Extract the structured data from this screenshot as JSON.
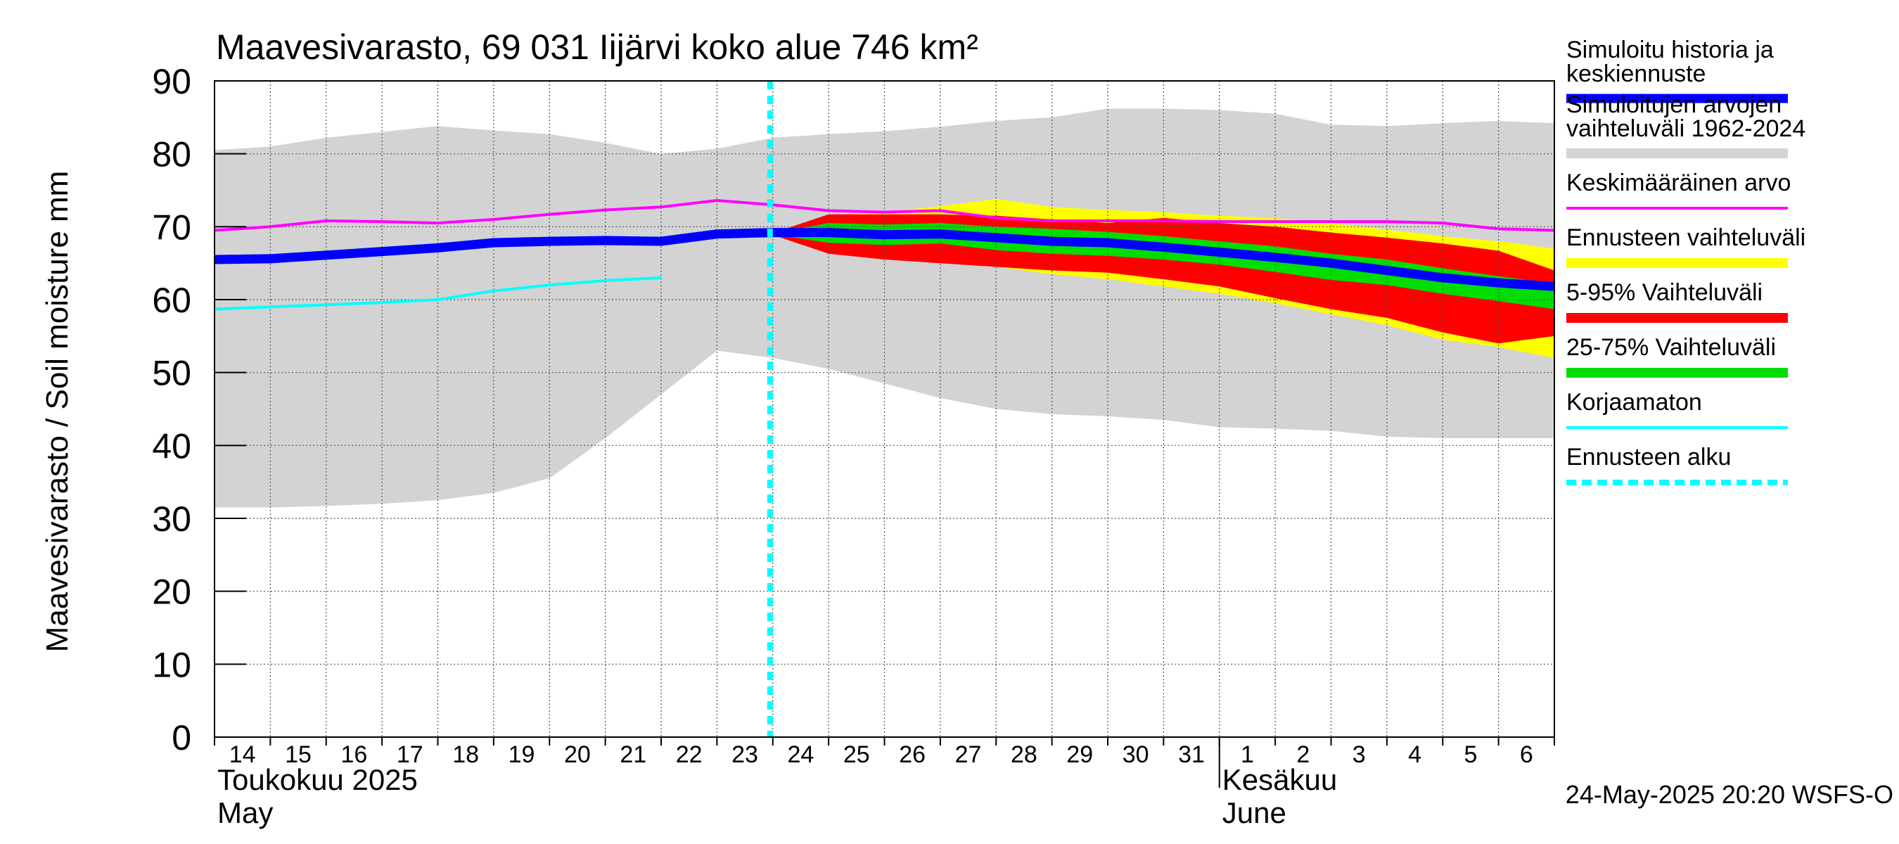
{
  "chart_data": {
    "type": "area",
    "title": "Maavesivarasto, 69 031 Iijärvi koko alue 746 km²",
    "ylabel": "Maavesivarasto / Soil moisture   mm",
    "ylim": [
      0,
      90
    ],
    "yticks": [
      0,
      10,
      20,
      30,
      40,
      50,
      60,
      70,
      80,
      90
    ],
    "x_start_day": 14,
    "x_end_day": 38,
    "x_ticks": [
      "14",
      "15",
      "16",
      "17",
      "18",
      "19",
      "20",
      "21",
      "22",
      "23",
      "24",
      "25",
      "26",
      "27",
      "28",
      "29",
      "30",
      "31",
      "1",
      "2",
      "3",
      "4",
      "5",
      "6"
    ],
    "month_labels": [
      {
        "fi": "Toukokuu  2025",
        "en": "May",
        "day": 14
      },
      {
        "fi": "Kesäkuu",
        "en": "June",
        "day": 32
      }
    ],
    "month_separator_day": 32,
    "forecast_start_day": 23.95,
    "series": {
      "sim_range": {
        "name": "Simuloitujen arvojen vaihteluväli 1962-2024",
        "color": "#d3d3d3",
        "x": [
          14,
          15,
          16,
          17,
          18,
          19,
          20,
          21,
          22,
          23,
          24,
          25,
          26,
          27,
          28,
          29,
          30,
          31,
          32,
          33,
          34,
          35,
          36,
          37,
          38
        ],
        "upper": [
          80.5,
          81,
          82.2,
          83,
          83.8,
          83.2,
          82.7,
          81.5,
          80,
          80.7,
          82.2,
          82.7,
          83.1,
          83.7,
          84.5,
          85,
          86.2,
          86.2,
          86,
          85.5,
          84,
          83.8,
          84.2,
          84.5,
          84.2
        ],
        "lower": [
          31.5,
          31.5,
          31.7,
          32,
          32.5,
          33.5,
          35.5,
          41,
          47,
          53,
          52,
          50.5,
          48.5,
          46.5,
          45,
          44.3,
          44,
          43.5,
          42.5,
          42.3,
          42,
          41.2,
          41,
          41,
          41
        ]
      },
      "forecast_range": {
        "name": "Ennusteen vaihteluväli",
        "color": "#ffff00",
        "x": [
          23.95,
          25,
          26,
          27,
          28,
          29,
          30,
          31,
          32,
          33,
          34,
          35,
          36,
          37,
          38
        ],
        "upper": [
          69,
          71.5,
          72,
          72.8,
          73.8,
          72.7,
          72.3,
          72,
          71.5,
          71.2,
          70.5,
          69.6,
          68.7,
          68,
          67
        ],
        "lower": [
          69,
          67,
          65.8,
          65.3,
          64.5,
          63.5,
          62.8,
          61.8,
          60.8,
          59.5,
          58,
          56.5,
          54.5,
          53.5,
          52
        ]
      },
      "p5_95": {
        "name": "5-95% Vaihteluväli",
        "color": "#ff0000",
        "x": [
          23.95,
          25,
          26,
          27,
          28,
          29,
          30,
          31,
          32,
          33,
          34,
          35,
          36,
          37,
          38
        ],
        "upper": [
          69,
          71.7,
          71.7,
          71.7,
          71.5,
          71,
          70.5,
          71.2,
          70.5,
          70,
          69.2,
          68.5,
          67.7,
          66.7,
          64
        ],
        "lower": [
          69,
          66.3,
          65.5,
          65,
          64.5,
          64,
          63.7,
          62.8,
          61.8,
          60.2,
          58.7,
          57.5,
          55.5,
          54,
          55
        ]
      },
      "p25_75": {
        "name": "25-75% Vaihteluväli",
        "color": "#00dd00",
        "x": [
          23.95,
          25,
          26,
          27,
          28,
          29,
          30,
          31,
          32,
          33,
          34,
          35,
          36,
          37,
          38
        ],
        "upper": [
          69,
          70.5,
          70.3,
          70.5,
          70,
          69.7,
          69.3,
          68.7,
          68,
          67.3,
          66.3,
          65.5,
          64.3,
          63.2,
          62.2
        ],
        "lower": [
          69,
          67.8,
          67.5,
          67.7,
          66.8,
          66.3,
          66,
          65.5,
          64.8,
          63.8,
          62.7,
          62,
          60.8,
          59.8,
          58.7
        ]
      },
      "mean": {
        "name": "Keskimääräinen arvo",
        "color": "#ff00ff",
        "x": [
          14,
          15,
          16,
          17,
          18,
          19,
          20,
          21,
          22,
          23,
          24,
          25,
          26,
          27,
          28,
          29,
          30,
          31,
          32,
          33,
          34,
          35,
          36,
          37,
          38
        ],
        "values": [
          69.5,
          70,
          70.8,
          70.7,
          70.5,
          71,
          71.7,
          72.3,
          72.7,
          73.6,
          73,
          72.2,
          72,
          72.2,
          71.2,
          70.8,
          70.8,
          70.8,
          70.7,
          70.7,
          70.7,
          70.7,
          70.5,
          69.7,
          69.5
        ]
      },
      "median": {
        "name": "Simuloitu historia ja keskiennuste",
        "color": "#0000ff",
        "x": [
          14,
          15,
          16,
          17,
          18,
          19,
          20,
          21,
          22,
          23,
          24,
          25,
          26,
          27,
          28,
          29,
          30,
          31,
          32,
          33,
          34,
          35,
          36,
          37,
          38
        ],
        "values": [
          65.5,
          65.6,
          66.1,
          66.6,
          67.1,
          67.8,
          68,
          68.1,
          68,
          69,
          69.2,
          69.2,
          68.9,
          69,
          68.5,
          68,
          67.8,
          67.2,
          66.5,
          65.8,
          65,
          64,
          63,
          62.3,
          61.8
        ]
      },
      "uncorrected": {
        "name": "Korjaamaton",
        "color": "#00ffff",
        "x": [
          14,
          15,
          16,
          17,
          18,
          19,
          20,
          21,
          22
        ],
        "values": [
          58.7,
          59,
          59.3,
          59.6,
          60,
          61.2,
          62,
          62.6,
          63
        ]
      }
    },
    "legend": [
      {
        "label": "Simuloitu historia ja keskiennuste",
        "lines": [
          "Simuloitu historia ja",
          "keskiennuste"
        ],
        "color": "#0000ff",
        "style": "thick"
      },
      {
        "label": "Simuloitujen arvojen vaihteluväli 1962-2024",
        "lines": [
          "Simuloitujen arvojen",
          "vaihteluväli 1962-2024"
        ],
        "color": "#d3d3d3",
        "style": "band"
      },
      {
        "label": "Keskimääräinen arvo",
        "lines": [
          "Keskimääräinen arvo"
        ],
        "color": "#ff00ff",
        "style": "thin"
      },
      {
        "label": "Ennusteen vaihteluväli",
        "lines": [
          "Ennusteen vaihteluväli"
        ],
        "color": "#ffff00",
        "style": "band"
      },
      {
        "label": "5-95% Vaihteluväli",
        "lines": [
          "5-95% Vaihteluväli"
        ],
        "color": "#ff0000",
        "style": "band"
      },
      {
        "label": "25-75% Vaihteluväli",
        "lines": [
          "25-75% Vaihteluväli"
        ],
        "color": "#00dd00",
        "style": "band"
      },
      {
        "label": "Korjaamaton",
        "lines": [
          "Korjaamaton"
        ],
        "color": "#00ffff",
        "style": "thin"
      },
      {
        "label": "Ennusteen alku",
        "lines": [
          "Ennusteen alku"
        ],
        "color": "#00ffff",
        "style": "dashed"
      }
    ],
    "footer": "24-May-2025 20:20 WSFS-O"
  }
}
